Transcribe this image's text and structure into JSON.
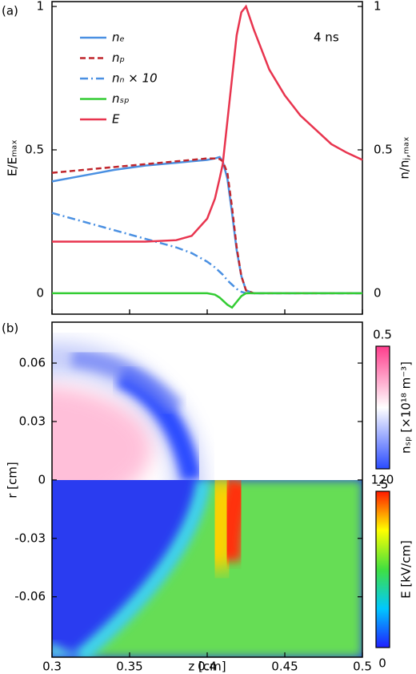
{
  "chart_data": [
    {
      "type": "line",
      "panel_label": "(a)",
      "annotation": "4 ns",
      "x": [
        0.3,
        0.32,
        0.34,
        0.36,
        0.38,
        0.39,
        0.4,
        0.405,
        0.408,
        0.41,
        0.413,
        0.416,
        0.419,
        0.422,
        0.425,
        0.43,
        0.44,
        0.45,
        0.46,
        0.47,
        0.48,
        0.49,
        0.5
      ],
      "xlim": [
        0.3,
        0.5
      ],
      "xticks": [
        0.3,
        0.35,
        0.4,
        0.45,
        0.5
      ],
      "ylim": [
        -0.073,
        1.017
      ],
      "yticks": [
        0,
        0.5,
        1
      ],
      "ylabel": "E/Eₘₐₓ",
      "y2lim": [
        -0.073,
        1.017
      ],
      "y2ticks": [
        0,
        0.5,
        1
      ],
      "y2label": "n/nⱼ,ₘₐₓ",
      "series": [
        {
          "name": "nₑ",
          "color": "#4a90e2",
          "linestyle": "solid",
          "axis": "y2",
          "values": [
            0.39,
            0.41,
            0.43,
            0.445,
            0.455,
            0.46,
            0.465,
            0.47,
            0.475,
            0.46,
            0.4,
            0.28,
            0.15,
            0.06,
            0.01,
            0,
            0,
            0,
            0,
            0,
            0,
            0,
            0
          ]
        },
        {
          "name": "nₚ",
          "color": "#c0272d",
          "linestyle": "dashed",
          "axis": "y2",
          "values": [
            0.42,
            0.43,
            0.44,
            0.45,
            0.46,
            0.465,
            0.47,
            0.47,
            0.468,
            0.46,
            0.42,
            0.3,
            0.16,
            0.06,
            0.01,
            0,
            0,
            0,
            0,
            0,
            0,
            0,
            0
          ]
        },
        {
          "name": "nₙ × 10",
          "color": "#4a90e2",
          "linestyle": "dashdot",
          "axis": "y2",
          "values": [
            0.28,
            0.25,
            0.22,
            0.19,
            0.16,
            0.14,
            0.11,
            0.09,
            0.075,
            0.065,
            0.045,
            0.03,
            0.015,
            0.005,
            0,
            0,
            0,
            0,
            0,
            0,
            0,
            0,
            0
          ]
        },
        {
          "name": "nₛₚ",
          "color": "#33cc33",
          "linestyle": "solid",
          "axis": "y2",
          "values": [
            0,
            0,
            0,
            0,
            0,
            0,
            0,
            -0.005,
            -0.015,
            -0.025,
            -0.04,
            -0.05,
            -0.03,
            -0.01,
            0,
            0,
            0,
            0,
            0,
            0,
            0,
            0,
            0
          ]
        },
        {
          "name": "E",
          "color": "#e8344e",
          "linestyle": "solid",
          "values": [
            0.18,
            0.18,
            0.18,
            0.18,
            0.185,
            0.2,
            0.26,
            0.33,
            0.4,
            0.45,
            0.6,
            0.75,
            0.9,
            0.98,
            1.0,
            0.92,
            0.78,
            0.69,
            0.62,
            0.57,
            0.52,
            0.49,
            0.465
          ]
        }
      ]
    },
    {
      "type": "heatmap",
      "panel_label": "(b)",
      "xlim": [
        0.3,
        0.5
      ],
      "xticks": [
        0.3,
        0.35,
        0.4,
        0.45,
        0.5
      ],
      "xlabel": "z [cm]",
      "ylim": [
        -0.091,
        0.081
      ],
      "yticks": [
        -0.06,
        -0.03,
        0,
        0.03,
        0.06
      ],
      "ylabel": "r [cm]",
      "colorbars": [
        {
          "label": "nₛₚ [×10¹⁸ m⁻³]",
          "lim": [
            -5,
            0.5
          ],
          "ticks": [
            -5,
            0.5
          ],
          "colors": [
            "#2a4bff",
            "#ffffff",
            "#ff3d8c"
          ]
        },
        {
          "label": "E [kV/cm]",
          "lim": [
            0,
            120
          ],
          "ticks": [
            0,
            120
          ],
          "colors": [
            "#2020ff",
            "#00c8ff",
            "#40e040",
            "#ffff00",
            "#ff1a00"
          ]
        }
      ]
    }
  ]
}
